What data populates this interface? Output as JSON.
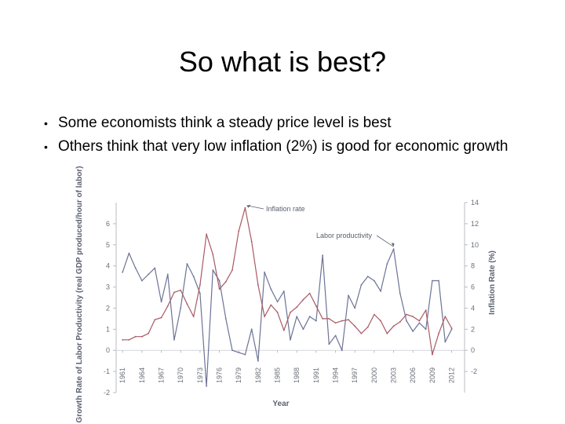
{
  "slide": {
    "title": "So what is best?",
    "bullets": [
      "Some economists think a steady price level is best",
      "Others think that very low inflation (2%) is good for economic growth"
    ]
  },
  "chart_data": {
    "type": "line",
    "xlabel": "Year",
    "ylabel_left": "Growth Rate of Labor Productivity (real GDP produced/hour of labor)",
    "ylabel_right": "Inflation Rate (%)",
    "ylim_left": [
      -2,
      7
    ],
    "ylim_right": [
      -4,
      14
    ],
    "x_range": [
      1960,
      2014
    ],
    "x_ticks": [
      1961,
      1964,
      1967,
      1970,
      1973,
      1976,
      1979,
      1982,
      1985,
      1988,
      1991,
      1994,
      1997,
      2000,
      2003,
      2006,
      2009,
      2012
    ],
    "y_ticks_left": [
      -2,
      -1,
      0,
      1,
      2,
      3,
      4,
      5,
      6
    ],
    "y_ticks_right": [
      -2,
      0,
      2,
      4,
      6,
      8,
      10,
      12,
      14
    ],
    "grid": false,
    "annotations": [
      "Inflation rate",
      "Labor productivity"
    ],
    "series": [
      {
        "name": "Labor productivity",
        "axis": "left",
        "color": "#6c7396",
        "x": [
          1961,
          1962,
          1963,
          1964,
          1965,
          1966,
          1967,
          1968,
          1969,
          1970,
          1971,
          1972,
          1973,
          1974,
          1975,
          1976,
          1977,
          1978,
          1979,
          1980,
          1981,
          1982,
          1983,
          1984,
          1985,
          1986,
          1987,
          1988,
          1989,
          1990,
          1991,
          1992,
          1993,
          1994,
          1995,
          1996,
          1997,
          1998,
          1999,
          2000,
          2001,
          2002,
          2003,
          2004,
          2005,
          2006,
          2007,
          2008,
          2009,
          2010,
          2011,
          2012
        ],
        "values": [
          3.7,
          4.6,
          3.9,
          3.3,
          3.6,
          3.9,
          2.3,
          3.6,
          0.5,
          2.0,
          4.1,
          3.5,
          2.7,
          -1.7,
          3.8,
          3.3,
          1.5,
          0.0,
          -0.1,
          -0.2,
          1.0,
          -0.5,
          3.7,
          2.9,
          2.3,
          2.8,
          0.5,
          1.6,
          1.0,
          1.6,
          1.4,
          4.5,
          0.3,
          0.7,
          0.0,
          2.6,
          2.0,
          3.1,
          3.5,
          3.3,
          2.8,
          4.1,
          4.8,
          2.7,
          1.4,
          0.9,
          1.3,
          1.0,
          3.3,
          3.3,
          0.4,
          1.0
        ]
      },
      {
        "name": "Inflation rate",
        "axis": "right",
        "color": "#a85a64",
        "x": [
          1961,
          1962,
          1963,
          1964,
          1965,
          1966,
          1967,
          1968,
          1969,
          1970,
          1971,
          1972,
          1973,
          1974,
          1975,
          1976,
          1977,
          1978,
          1979,
          1980,
          1981,
          1982,
          1983,
          1984,
          1985,
          1986,
          1987,
          1988,
          1989,
          1990,
          1991,
          1992,
          1993,
          1994,
          1995,
          1996,
          1997,
          1998,
          1999,
          2000,
          2001,
          2002,
          2003,
          2004,
          2005,
          2006,
          2007,
          2008,
          2009,
          2010,
          2011,
          2012
        ],
        "values": [
          1.0,
          1.0,
          1.3,
          1.3,
          1.6,
          2.9,
          3.1,
          4.2,
          5.5,
          5.7,
          4.4,
          3.2,
          6.2,
          11.0,
          9.1,
          5.8,
          6.5,
          7.6,
          11.3,
          13.5,
          10.3,
          6.2,
          3.2,
          4.3,
          3.6,
          1.9,
          3.6,
          4.1,
          4.8,
          5.4,
          4.2,
          3.0,
          3.0,
          2.6,
          2.8,
          2.9,
          2.3,
          1.6,
          2.2,
          3.4,
          2.8,
          1.6,
          2.3,
          2.7,
          3.4,
          3.2,
          2.8,
          3.8,
          -0.4,
          1.6,
          3.2,
          2.1
        ]
      }
    ]
  }
}
